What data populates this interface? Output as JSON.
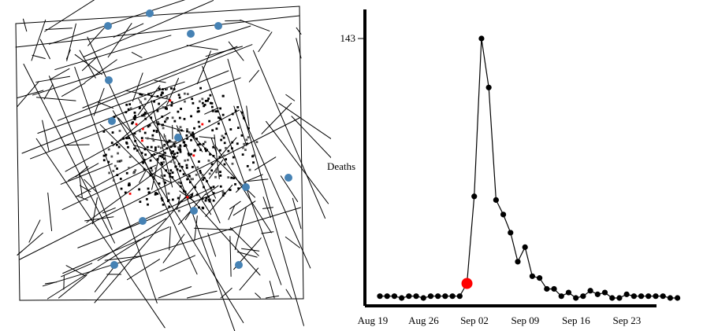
{
  "map": {
    "pump_color": "#4682b4",
    "death_color": "#000000",
    "highlight_color": "#ff0000"
  },
  "chart_data": {
    "type": "line",
    "title": "",
    "xlabel": "",
    "ylabel": "Deaths",
    "x": [
      "Aug 19",
      "Aug 20",
      "Aug 21",
      "Aug 22",
      "Aug 23",
      "Aug 24",
      "Aug 25",
      "Aug 26",
      "Aug 27",
      "Aug 28",
      "Aug 29",
      "Aug 30",
      "Aug 31",
      "Sep 01",
      "Sep 02",
      "Sep 03",
      "Sep 04",
      "Sep 05",
      "Sep 06",
      "Sep 07",
      "Sep 08",
      "Sep 09",
      "Sep 10",
      "Sep 11",
      "Sep 12",
      "Sep 13",
      "Sep 14",
      "Sep 15",
      "Sep 16",
      "Sep 17",
      "Sep 18",
      "Sep 19",
      "Sep 20",
      "Sep 21",
      "Sep 22",
      "Sep 23",
      "Sep 24",
      "Sep 25",
      "Sep 26",
      "Sep 27",
      "Sep 28",
      "Sep 29"
    ],
    "values": [
      1,
      1,
      1,
      0,
      1,
      1,
      0,
      1,
      1,
      1,
      1,
      1,
      8,
      56,
      143,
      116,
      54,
      46,
      36,
      20,
      28,
      12,
      11,
      5,
      5,
      1,
      3,
      0,
      1,
      4,
      2,
      3,
      0,
      0,
      2,
      1,
      1,
      1,
      1,
      1,
      0,
      0
    ],
    "highlight_index": 12,
    "ylim": [
      0,
      143
    ],
    "y_ticks": [
      {
        "value": 143,
        "label": "143"
      }
    ],
    "x_ticks": [
      {
        "date": "Aug 19",
        "label": "Aug 19"
      },
      {
        "date": "Aug 26",
        "label": "Aug 26"
      },
      {
        "date": "Sep 02",
        "label": "Sep 02"
      },
      {
        "date": "Sep 09",
        "label": "Sep 09"
      },
      {
        "date": "Sep 16",
        "label": "Sep 16"
      },
      {
        "date": "Sep 23",
        "label": "Sep 23"
      }
    ],
    "grid": false,
    "marker_color": "#000000",
    "highlight_color": "#ff0000"
  }
}
